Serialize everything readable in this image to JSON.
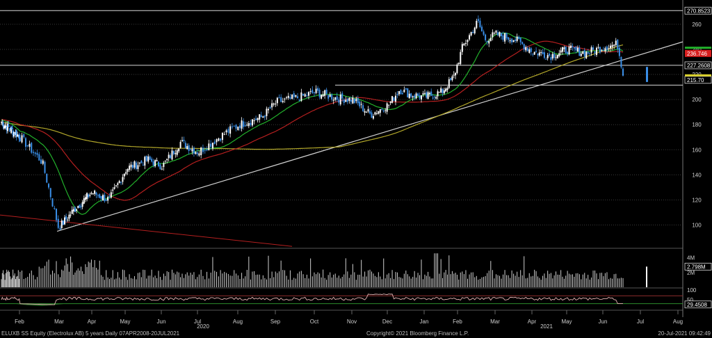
{
  "footer": {
    "left": "ELUXB SS Equity (Electrolux AB) 5 years  Daily 07APR2008-20JUL2021",
    "center": "Copyright© 2021 Bloomberg Finance L.P.",
    "right": "20-Jul-2021 09:42:49"
  },
  "colors": {
    "background": "#000000",
    "up_candle": "#ffffff",
    "down_candle": "#3a8fe8",
    "ma_green": "#22b12b",
    "ma_red": "#b51f1f",
    "ma_yellow": "#b3a82a",
    "trendline": "#cfcfcf",
    "rsi_line": "#e8b4b4",
    "rsi_fill": "#2a7a2a"
  },
  "chart_data": {
    "type": "candlestick",
    "x_ticks": [
      "Feb",
      "Mar",
      "Apr",
      "May",
      "Jun",
      "Jul",
      "Aug",
      "Sep",
      "Oct",
      "Nov",
      "Dec",
      "Jan",
      "Feb",
      "Mar",
      "Apr",
      "May",
      "Jun",
      "Jul",
      "Aug"
    ],
    "year_labels": [
      "2020",
      "2021"
    ],
    "price_axis": {
      "range": [
        82,
        276
      ],
      "ticks": [
        100,
        120,
        140,
        160,
        180,
        200,
        220,
        240,
        260
      ],
      "last_price": 215.7,
      "markers": [
        {
          "label": "270.8523",
          "value": 270.8523,
          "color": "#ffffff"
        },
        {
          "label": "236.746",
          "value": 236.746,
          "color": "#d81e1e"
        },
        {
          "label": "227.2608",
          "value": 227.2608,
          "color": "#ffffff"
        },
        {
          "label": "215.70",
          "value": 215.7,
          "color": "#ffffff"
        }
      ]
    },
    "horizontal_levels": [
      270.8523,
      227.2608,
      211.5
    ],
    "trendlines": [
      {
        "from": {
          "x": "Mar",
          "y": 95
        },
        "to": {
          "x": "Aug",
          "y": 246
        },
        "color": "#cfcfcf"
      },
      {
        "from": {
          "x": "Jan 2020",
          "y": 108
        },
        "to": {
          "x": "Oct",
          "y": 83
        },
        "color": "#b51f1f"
      }
    ],
    "price_path": [
      [
        "Jan",
        182
      ],
      [
        "Feb",
        170
      ],
      [
        "Mar",
        98
      ],
      [
        "Apr",
        118
      ],
      [
        "May",
        128
      ],
      [
        "Jun",
        150
      ],
      [
        "Jul",
        168
      ],
      [
        "Aug",
        172
      ],
      [
        "Sep",
        182
      ],
      [
        "Oct",
        198
      ],
      [
        "Nov",
        204
      ],
      [
        "Dec",
        190
      ],
      [
        "Jan",
        205
      ],
      [
        "Feb",
        200
      ],
      [
        "Mar",
        262
      ],
      [
        "Apr",
        248
      ],
      [
        "May",
        236
      ],
      [
        "Jun",
        238
      ],
      [
        "Jul",
        240
      ],
      [
        "Jul 20",
        214
      ]
    ],
    "moving_averages": [
      {
        "name": "",
        "color": "#22b12b"
      },
      {
        "name": "",
        "color": "#b51f1f"
      },
      {
        "name": "",
        "color": "#b3a82a"
      }
    ],
    "volume": {
      "ticks": [
        "4M",
        "2M"
      ],
      "last_label": "2.798M",
      "last": 2.798
    },
    "rsi": {
      "ticks": [
        "100",
        "50"
      ],
      "last_label": "29.4508",
      "last": 29.4508
    }
  }
}
